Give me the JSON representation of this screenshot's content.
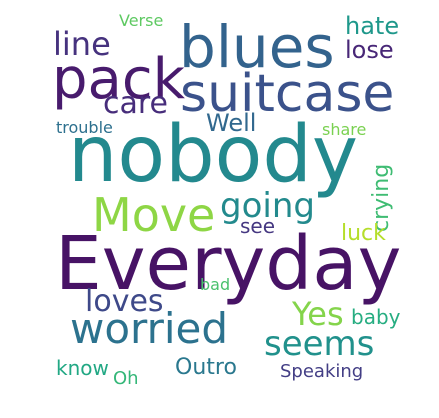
{
  "words": [
    {
      "key": "nobody",
      "text": "nobody",
      "color": "#23898e"
    },
    {
      "key": "everyday",
      "text": "Everyday",
      "color": "#471365"
    },
    {
      "key": "blues",
      "text": "blues",
      "color": "#33638d"
    },
    {
      "key": "pack",
      "text": "pack",
      "color": "#481b6d"
    },
    {
      "key": "suitcase",
      "text": "suitcase",
      "color": "#3b528b"
    },
    {
      "key": "move",
      "text": "Move",
      "color": "#8ed645"
    },
    {
      "key": "worried",
      "text": "worried",
      "color": "#2c728e"
    },
    {
      "key": "seems",
      "text": "seems",
      "color": "#21918c"
    },
    {
      "key": "going",
      "text": "going",
      "color": "#238a8d"
    },
    {
      "key": "line",
      "text": "line",
      "color": "#46327e"
    },
    {
      "key": "care",
      "text": "care",
      "color": "#472d7b"
    },
    {
      "key": "loves",
      "text": "loves",
      "color": "#3e4989"
    },
    {
      "key": "yes",
      "text": "Yes",
      "color": "#84d44b"
    },
    {
      "key": "well",
      "text": "Well",
      "color": "#31688e"
    },
    {
      "key": "hate",
      "text": "hate",
      "color": "#1f988b"
    },
    {
      "key": "lose",
      "text": "lose",
      "color": "#482777"
    },
    {
      "key": "crying",
      "text": "crying",
      "color": "#3fbc73"
    },
    {
      "key": "see",
      "text": "see",
      "color": "#453781"
    },
    {
      "key": "luck",
      "text": "luck",
      "color": "#b5de2b"
    },
    {
      "key": "baby",
      "text": "baby",
      "color": "#26ad81"
    },
    {
      "key": "outro",
      "text": "Outro",
      "color": "#2a788e"
    },
    {
      "key": "know",
      "text": "know",
      "color": "#22a884"
    },
    {
      "key": "oh",
      "text": "Oh",
      "color": "#35b779"
    },
    {
      "key": "speaking",
      "text": "Speaking",
      "color": "#433e85"
    },
    {
      "key": "share",
      "text": "share",
      "color": "#7ad151"
    },
    {
      "key": "trouble",
      "text": "trouble",
      "color": "#2d708e"
    },
    {
      "key": "verse",
      "text": "Verse",
      "color": "#5ec962"
    },
    {
      "key": "bad",
      "text": "bad",
      "color": "#4ac16d"
    }
  ]
}
